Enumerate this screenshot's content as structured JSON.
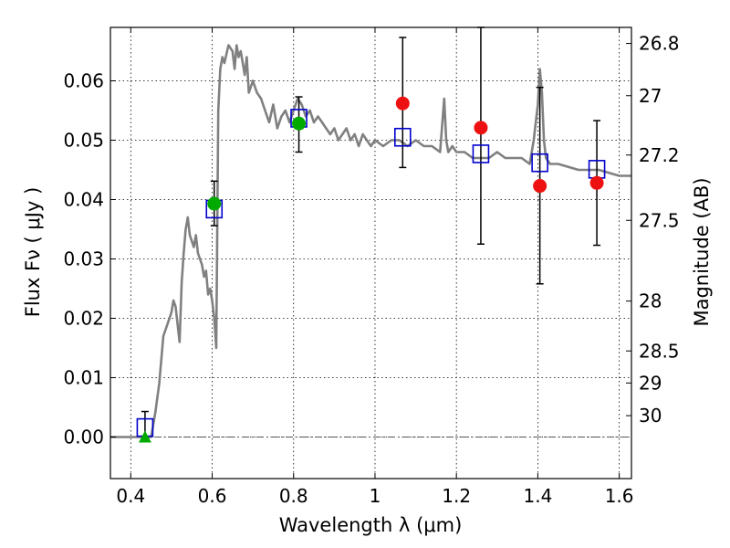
{
  "chart_data": {
    "type": "scatter",
    "xlabel": "Wavelength  λ (μm)",
    "ylabel": "Flux  Fν  ( μJy )",
    "ylabel2": "Magnitude (AB)",
    "xlim": [
      0.35,
      1.63
    ],
    "ylim": [
      -0.007,
      0.069
    ],
    "grid": true,
    "x_ticks": [
      {
        "value": 0.4,
        "label": "0.4"
      },
      {
        "value": 0.6,
        "label": "0.6"
      },
      {
        "value": 0.8,
        "label": "0.8"
      },
      {
        "value": 1.0,
        "label": "1"
      },
      {
        "value": 1.2,
        "label": "1.2"
      },
      {
        "value": 1.4,
        "label": "1.4"
      },
      {
        "value": 1.6,
        "label": "1.6"
      }
    ],
    "y_ticks": [
      {
        "value": 0.0,
        "label": "0.00"
      },
      {
        "value": 0.01,
        "label": "0.01"
      },
      {
        "value": 0.02,
        "label": "0.02"
      },
      {
        "value": 0.03,
        "label": "0.03"
      },
      {
        "value": 0.04,
        "label": "0.04"
      },
      {
        "value": 0.05,
        "label": "0.05"
      },
      {
        "value": 0.06,
        "label": "0.06"
      }
    ],
    "y2_ticks": [
      {
        "flux": 0.0663,
        "label": "26.8"
      },
      {
        "flux": 0.0575,
        "label": "27"
      },
      {
        "flux": 0.0475,
        "label": "27.2"
      },
      {
        "flux": 0.0365,
        "label": "27.5"
      },
      {
        "flux": 0.0229,
        "label": "28"
      },
      {
        "flux": 0.0145,
        "label": "28.5"
      },
      {
        "flux": 0.0091,
        "label": "29"
      },
      {
        "flux": 0.0036,
        "label": "30"
      }
    ],
    "colors": {
      "spectrum": "#808080",
      "model_box": "#0000cc",
      "green_point": "#00aa00",
      "red_point": "#ee1111",
      "errorbar": "#000000",
      "zero_line": "#555555"
    },
    "spectrum": {
      "x": [
        0.35,
        0.4,
        0.45,
        0.46,
        0.47,
        0.48,
        0.49,
        0.5,
        0.505,
        0.51,
        0.52,
        0.525,
        0.53,
        0.535,
        0.54,
        0.545,
        0.55,
        0.555,
        0.56,
        0.565,
        0.57,
        0.575,
        0.58,
        0.585,
        0.59,
        0.595,
        0.6,
        0.605,
        0.61,
        0.615,
        0.62,
        0.625,
        0.63,
        0.64,
        0.65,
        0.655,
        0.66,
        0.665,
        0.67,
        0.675,
        0.68,
        0.685,
        0.69,
        0.7,
        0.71,
        0.72,
        0.73,
        0.74,
        0.75,
        0.76,
        0.77,
        0.78,
        0.79,
        0.8,
        0.81,
        0.82,
        0.83,
        0.84,
        0.85,
        0.86,
        0.87,
        0.88,
        0.89,
        0.9,
        0.91,
        0.92,
        0.93,
        0.94,
        0.95,
        0.96,
        0.97,
        0.98,
        0.99,
        1.0,
        1.02,
        1.04,
        1.06,
        1.08,
        1.1,
        1.12,
        1.14,
        1.16,
        1.17,
        1.175,
        1.18,
        1.19,
        1.2,
        1.22,
        1.24,
        1.26,
        1.28,
        1.3,
        1.32,
        1.34,
        1.36,
        1.38,
        1.39,
        1.4,
        1.405,
        1.41,
        1.415,
        1.42,
        1.43,
        1.45,
        1.5,
        1.55,
        1.6,
        1.63
      ],
      "y": [
        0.0,
        0.0,
        0.0,
        0.004,
        0.009,
        0.017,
        0.019,
        0.021,
        0.023,
        0.022,
        0.016,
        0.026,
        0.031,
        0.035,
        0.037,
        0.034,
        0.033,
        0.032,
        0.034,
        0.031,
        0.03,
        0.029,
        0.027,
        0.028,
        0.024,
        0.025,
        0.023,
        0.02,
        0.015,
        0.055,
        0.062,
        0.064,
        0.063,
        0.066,
        0.065,
        0.062,
        0.066,
        0.064,
        0.065,
        0.063,
        0.061,
        0.064,
        0.058,
        0.06,
        0.058,
        0.057,
        0.055,
        0.053,
        0.056,
        0.052,
        0.054,
        0.055,
        0.053,
        0.055,
        0.057,
        0.056,
        0.054,
        0.055,
        0.053,
        0.054,
        0.053,
        0.052,
        0.051,
        0.052,
        0.05,
        0.051,
        0.052,
        0.05,
        0.051,
        0.049,
        0.051,
        0.05,
        0.049,
        0.05,
        0.049,
        0.05,
        0.05,
        0.049,
        0.05,
        0.049,
        0.049,
        0.048,
        0.057,
        0.05,
        0.048,
        0.049,
        0.048,
        0.048,
        0.047,
        0.047,
        0.047,
        0.048,
        0.047,
        0.047,
        0.047,
        0.046,
        0.05,
        0.056,
        0.062,
        0.058,
        0.05,
        0.047,
        0.046,
        0.046,
        0.045,
        0.045,
        0.044,
        0.044
      ]
    },
    "model_points": [
      {
        "x": 0.435,
        "y": 0.0016
      },
      {
        "x": 0.605,
        "y": 0.0384
      },
      {
        "x": 0.813,
        "y": 0.0537
      },
      {
        "x": 1.068,
        "y": 0.0505
      },
      {
        "x": 1.26,
        "y": 0.0477
      },
      {
        "x": 1.405,
        "y": 0.0462
      },
      {
        "x": 1.545,
        "y": 0.0451
      }
    ],
    "green_points": [
      {
        "x": 0.605,
        "y": 0.0393
      },
      {
        "x": 0.813,
        "y": 0.0528
      }
    ],
    "green_triangles": [
      {
        "x": 0.435,
        "y": 0.0
      }
    ],
    "red_points": [
      {
        "x": 1.068,
        "y": 0.0562
      },
      {
        "x": 1.26,
        "y": 0.0521
      },
      {
        "x": 1.405,
        "y": 0.0423
      },
      {
        "x": 1.545,
        "y": 0.0428
      }
    ],
    "error_bars": [
      {
        "x": 0.435,
        "low": -0.0005,
        "high": 0.0043
      },
      {
        "x": 0.605,
        "low": 0.0356,
        "high": 0.0431
      },
      {
        "x": 0.813,
        "low": 0.048,
        "high": 0.0573
      },
      {
        "x": 1.068,
        "low": 0.0454,
        "high": 0.0673
      },
      {
        "x": 1.26,
        "low": 0.0325,
        "high": 0.069
      },
      {
        "x": 1.405,
        "low": 0.0258,
        "high": 0.0589
      },
      {
        "x": 1.545,
        "low": 0.0323,
        "high": 0.0533
      }
    ]
  }
}
